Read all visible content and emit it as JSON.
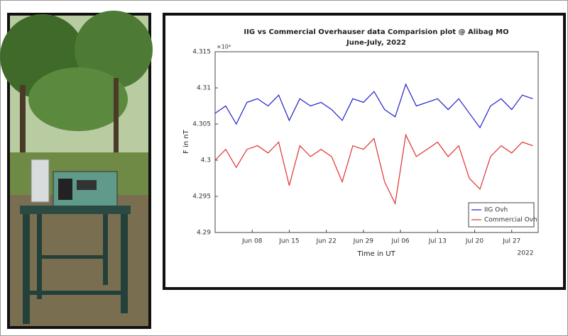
{
  "chart_data": {
    "type": "line",
    "title": "IIG vs Commercial Overhauser data Comparision plot @ Alibag MO",
    "subtitle": "June-July, 2022",
    "x_label": "Time in UT",
    "y_label": "F in nT",
    "axis_multiplier": "×10⁴",
    "x_year_label": "2022",
    "x": [
      "2022-06-01",
      "2022-06-03",
      "2022-06-05",
      "2022-06-07",
      "2022-06-09",
      "2022-06-11",
      "2022-06-13",
      "2022-06-15",
      "2022-06-17",
      "2022-06-19",
      "2022-06-21",
      "2022-06-23",
      "2022-06-25",
      "2022-06-27",
      "2022-06-29",
      "2022-07-01",
      "2022-07-03",
      "2022-07-05",
      "2022-07-07",
      "2022-07-09",
      "2022-07-11",
      "2022-07-13",
      "2022-07-15",
      "2022-07-17",
      "2022-07-19",
      "2022-07-21",
      "2022-07-23",
      "2022-07-25",
      "2022-07-27",
      "2022-07-29",
      "2022-07-31"
    ],
    "series": [
      {
        "name": "IIG Ovh",
        "color": "#1f1fc8",
        "values": [
          4.3065,
          4.3075,
          4.305,
          4.308,
          4.3085,
          4.3075,
          4.309,
          4.3055,
          4.3085,
          4.3075,
          4.308,
          4.307,
          4.3055,
          4.3085,
          4.308,
          4.3095,
          4.307,
          4.306,
          4.3105,
          4.3075,
          4.308,
          4.3085,
          4.307,
          4.3085,
          4.3065,
          4.3045,
          4.3075,
          4.3085,
          4.307,
          4.309,
          4.3085
        ]
      },
      {
        "name": "Commercial Ovh",
        "color": "#e03030",
        "values": [
          4.3,
          4.3015,
          4.299,
          4.3015,
          4.302,
          4.301,
          4.3025,
          4.2965,
          4.302,
          4.3005,
          4.3015,
          4.3005,
          4.297,
          4.302,
          4.3015,
          4.303,
          4.297,
          4.294,
          4.3035,
          4.3005,
          4.3015,
          4.3025,
          4.3005,
          4.302,
          4.2975,
          4.296,
          4.3005,
          4.302,
          4.301,
          4.3025,
          4.302
        ]
      }
    ],
    "xlim": [
      "2022-06-01",
      "2022-08-01"
    ],
    "xticks": [
      {
        "value": "2022-06-08",
        "label": "Jun 08"
      },
      {
        "value": "2022-06-15",
        "label": "Jun 15"
      },
      {
        "value": "2022-06-22",
        "label": "Jun 22"
      },
      {
        "value": "2022-06-29",
        "label": "Jun 29"
      },
      {
        "value": "2022-07-06",
        "label": "Jul 06"
      },
      {
        "value": "2022-07-13",
        "label": "Jul 13"
      },
      {
        "value": "2022-07-20",
        "label": "Jul 20"
      },
      {
        "value": "2022-07-27",
        "label": "Jul 27"
      }
    ],
    "ylim": [
      4.29,
      4.315
    ],
    "yticks": [
      4.29,
      4.295,
      4.3,
      4.305,
      4.31,
      4.315
    ],
    "grid": false,
    "legend": "lower-right"
  }
}
